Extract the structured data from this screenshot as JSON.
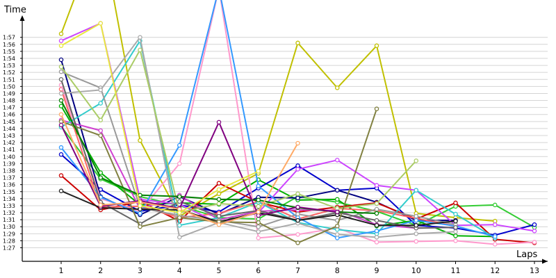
{
  "chart_data": {
    "type": "line",
    "title": "",
    "xlabel": "Laps",
    "ylabel": "Time",
    "x": [
      1,
      2,
      3,
      4,
      5,
      6,
      7,
      8,
      9,
      10,
      11,
      12,
      13
    ],
    "x_tick_labels": [
      "1",
      "2",
      "3",
      "4",
      "5",
      "6",
      "7",
      "8",
      "9",
      "10",
      "11",
      "12",
      "13"
    ],
    "y_tick_labels": [
      "1:27",
      "1:28",
      "1:29",
      "1:30",
      "1:31",
      "1:32",
      "1:33",
      "1:34",
      "1:35",
      "1:36",
      "1:37",
      "1:38",
      "1:39",
      "1:40",
      "1:41",
      "1:42",
      "1:43",
      "1:44",
      "1:45",
      "1:46",
      "1:47",
      "1:48",
      "1:49",
      "1:50",
      "1:51",
      "1:52",
      "1:53",
      "1:54",
      "1:55",
      "1:56",
      "1:57"
    ],
    "ylim": [
      86,
      118
    ],
    "y_units": "seconds",
    "grid": true,
    "legend": "none",
    "series": [
      {
        "color": "#c0c000",
        "values": [
          117.5,
          132.5,
          102.3,
          91.5,
          94.7,
          97.6,
          116.2,
          109.8,
          115.8,
          91.9,
          91.3,
          90.8,
          null
        ]
      },
      {
        "color": "#33cc33",
        "values": [
          104.3,
          96.8,
          94.3,
          93.0,
          91.3,
          91.1,
          94.3,
          93.5,
          92.2,
          90.2,
          92.9,
          93.1,
          89.9
        ]
      },
      {
        "color": "#00b000",
        "values": [
          107.2,
          97.7,
          93.1,
          93.4,
          93.2,
          96.7,
          93.8,
          93.9,
          90.1,
          90.9,
          88.7,
          88.6,
          null
        ]
      },
      {
        "color": "#0000cc",
        "values": [
          100.3,
          95.3,
          92.2,
          93.1,
          92.1,
          95.5,
          98.7,
          95.2,
          95.5,
          90.2,
          89.8,
          88.8,
          90.3
        ]
      },
      {
        "color": "#000080",
        "values": [
          113.8,
          94.3,
          91.7,
          94.3,
          91.8,
          94.2,
          94.1,
          95.2,
          93.5,
          90.9,
          90.9,
          null,
          null
        ]
      },
      {
        "color": "#cc0000",
        "values": [
          97.3,
          92.4,
          93.6,
          90.8,
          96.2,
          93.5,
          92.1,
          92.8,
          93.4,
          91.1,
          93.4,
          88.2,
          87.7
        ]
      },
      {
        "color": "#ff6666",
        "values": [
          109.6,
          92.8,
          92.9,
          91.3,
          91.9,
          93.6,
          91.1,
          92.6,
          92.3,
          91.2,
          90.1,
          null,
          null
        ]
      },
      {
        "color": "#ff99cc",
        "values": [
          110.2,
          94.0,
          92.2,
          99.0,
          124.0,
          88.4,
          88.9,
          89.8,
          87.8,
          87.9,
          88.0,
          87.5,
          87.8
        ]
      },
      {
        "color": "#cc44ff",
        "values": [
          116.5,
          119.0,
          93.9,
          93.2,
          90.5,
          92.0,
          98.2,
          99.5,
          95.9,
          95.2,
          90.2,
          90.3,
          89.4
        ]
      },
      {
        "color": "#d040d0",
        "values": [
          105.2,
          103.7,
          92.5,
          94.5,
          91.0,
          92.2,
          92.4,
          92.3,
          90.3,
          89.8,
          89.9,
          null,
          null
        ]
      },
      {
        "color": "#33cccc",
        "values": [
          104.2,
          107.6,
          116.5,
          90.2,
          91.3,
          93.5,
          90.6,
          89.6,
          89.0,
          95.2,
          91.8,
          88.4,
          null
        ]
      },
      {
        "color": "#3399ff",
        "values": [
          101.3,
          94.2,
          91.9,
          101.6,
          124.0,
          95.8,
          91.3,
          88.4,
          89.4,
          90.9,
          90.1,
          88.6,
          null
        ]
      },
      {
        "color": "#999999",
        "values": [
          112.1,
          109.8,
          92.7,
          91.6,
          90.9,
          90.0,
          91.8,
          90.9,
          92.5,
          91.5,
          90.3,
          null,
          null
        ]
      },
      {
        "color": "#aaaaaa",
        "values": [
          109.0,
          109.5,
          117.0,
          88.5,
          90.6,
          89.3,
          90.5,
          88.9,
          88.5,
          89.0,
          89.3,
          null,
          null
        ]
      },
      {
        "color": "#666666",
        "values": [
          111.0,
          93.5,
          90.4,
          93.6,
          91.5,
          92.3,
          90.9,
          92.0,
          90.9,
          89.8,
          89.9,
          null,
          null
        ]
      },
      {
        "color": "#202020",
        "values": [
          95.1,
          92.7,
          92.5,
          92.4,
          90.7,
          92.0,
          90.9,
          91.7,
          90.2,
          90.2,
          90.8,
          null,
          null
        ]
      },
      {
        "color": "#aacc66",
        "values": [
          112.8,
          105.2,
          115.2,
          92.0,
          93.3,
          92.9,
          94.7,
          92.6,
          93.3,
          99.4,
          null,
          null,
          null
        ]
      },
      {
        "color": "#808040",
        "values": [
          105.0,
          103.0,
          90.0,
          91.3,
          90.7,
          90.6,
          87.7,
          90.1,
          106.8,
          null,
          null,
          null,
          null
        ]
      },
      {
        "color": "#008000",
        "values": [
          108.0,
          97.0,
          94.5,
          94.3,
          93.9,
          93.8,
          92.7,
          92.1,
          91.9,
          null,
          null,
          null,
          null
        ]
      },
      {
        "color": "#800080",
        "values": [
          104.5,
          92.9,
          93.7,
          92.6,
          104.9,
          91.6,
          92.8,
          92.1,
          null,
          null,
          null,
          null,
          null
        ]
      },
      {
        "color": "#ffaa66",
        "values": [
          106.0,
          93.1,
          93.5,
          92.5,
          90.3,
          92.1,
          101.9,
          null,
          null,
          null,
          null,
          null,
          null
        ]
      },
      {
        "color": "#e8e840",
        "values": [
          115.8,
          119.0,
          93.0,
          92.0,
          95.3,
          97.9,
          null,
          null,
          null,
          null,
          null,
          null,
          null
        ]
      }
    ]
  }
}
